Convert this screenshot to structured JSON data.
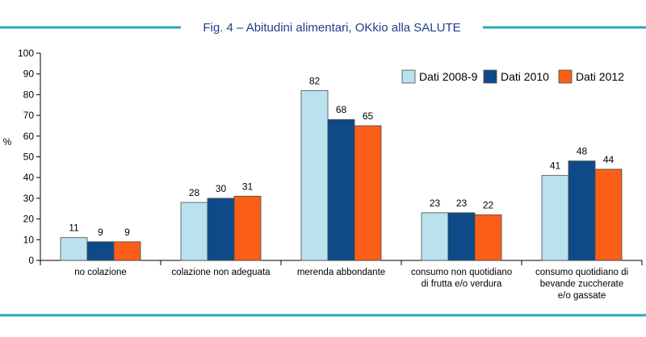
{
  "header": {
    "title": "Fig. 4 – Abitudini alimentari, OKkio alla SALUTE",
    "rule_color": "#2aa7b8",
    "title_color": "#1f3d8a"
  },
  "chart_data": {
    "type": "bar",
    "title": "Fig. 4 – Abitudini alimentari, OKkio alla SALUTE",
    "xlabel": "",
    "ylabel": "%",
    "ylim": [
      0,
      100
    ],
    "yticks": [
      0,
      10,
      20,
      30,
      40,
      50,
      60,
      70,
      80,
      90,
      100
    ],
    "grid": false,
    "legend_position": "top-right",
    "categories": [
      [
        "no colazione"
      ],
      [
        "colazione non adeguata"
      ],
      [
        "merenda abbondante"
      ],
      [
        "consumo non quotidiano",
        "di frutta e/o verdura"
      ],
      [
        "consumo quotidiano di",
        "bevande zuccherate",
        "e/o gassate"
      ]
    ],
    "series": [
      {
        "name": "Dati 2008-9",
        "color": "#b9e2ee",
        "values": [
          11,
          28,
          82,
          23,
          41
        ]
      },
      {
        "name": "Dati 2010",
        "color": "#0e4a87",
        "values": [
          9,
          30,
          68,
          23,
          48
        ]
      },
      {
        "name": "Dati 2012",
        "color": "#fb5f17",
        "values": [
          9,
          31,
          65,
          22,
          44
        ]
      }
    ]
  }
}
